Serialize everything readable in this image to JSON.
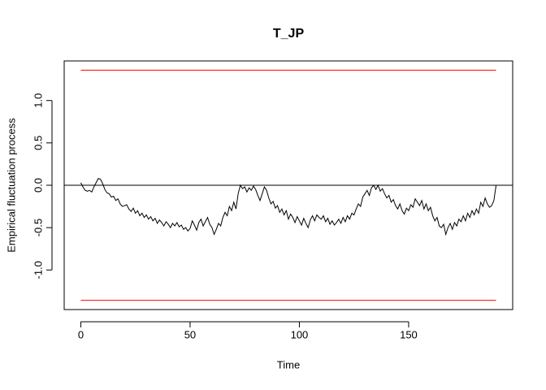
{
  "chart_data": {
    "type": "line",
    "title": "T_JP",
    "x_label": "Time",
    "y_label": "Empirical fluctuation process",
    "x": [
      0,
      1,
      2,
      3,
      4,
      5,
      6,
      7,
      8,
      9,
      10,
      11,
      12,
      13,
      14,
      15,
      16,
      17,
      18,
      19,
      20,
      21,
      22,
      23,
      24,
      25,
      26,
      27,
      28,
      29,
      30,
      31,
      32,
      33,
      34,
      35,
      36,
      37,
      38,
      39,
      40,
      41,
      42,
      43,
      44,
      45,
      46,
      47,
      48,
      49,
      50,
      51,
      52,
      53,
      54,
      55,
      56,
      57,
      58,
      59,
      60,
      61,
      62,
      63,
      64,
      65,
      66,
      67,
      68,
      69,
      70,
      71,
      72,
      73,
      74,
      75,
      76,
      77,
      78,
      79,
      80,
      81,
      82,
      83,
      84,
      85,
      86,
      87,
      88,
      89,
      90,
      91,
      92,
      93,
      94,
      95,
      96,
      97,
      98,
      99,
      100,
      101,
      102,
      103,
      104,
      105,
      106,
      107,
      108,
      109,
      110,
      111,
      112,
      113,
      114,
      115,
      116,
      117,
      118,
      119,
      120,
      121,
      122,
      123,
      124,
      125,
      126,
      127,
      128,
      129,
      130,
      131,
      132,
      133,
      134,
      135,
      136,
      137,
      138,
      139,
      140,
      141,
      142,
      143,
      144,
      145,
      146,
      147,
      148,
      149,
      150,
      151,
      152,
      153,
      154,
      155,
      156,
      157,
      158,
      159,
      160,
      161,
      162,
      163,
      164,
      165,
      166,
      167,
      168,
      169,
      170,
      171,
      172,
      173,
      174,
      175,
      176,
      177,
      178,
      179,
      180,
      181,
      182,
      183,
      184,
      185,
      186,
      187,
      188,
      189,
      190
    ],
    "values": [
      0.03,
      -0.02,
      -0.06,
      -0.07,
      -0.06,
      -0.08,
      -0.02,
      0.03,
      0.08,
      0.07,
      0.02,
      -0.05,
      -0.09,
      -0.1,
      -0.14,
      -0.13,
      -0.18,
      -0.16,
      -0.22,
      -0.25,
      -0.24,
      -0.23,
      -0.28,
      -0.31,
      -0.27,
      -0.33,
      -0.3,
      -0.36,
      -0.33,
      -0.38,
      -0.35,
      -0.4,
      -0.37,
      -0.42,
      -0.39,
      -0.45,
      -0.41,
      -0.44,
      -0.48,
      -0.43,
      -0.46,
      -0.5,
      -0.45,
      -0.48,
      -0.44,
      -0.49,
      -0.47,
      -0.52,
      -0.5,
      -0.54,
      -0.51,
      -0.42,
      -0.47,
      -0.53,
      -0.44,
      -0.4,
      -0.48,
      -0.43,
      -0.38,
      -0.46,
      -0.5,
      -0.58,
      -0.52,
      -0.45,
      -0.48,
      -0.38,
      -0.32,
      -0.36,
      -0.25,
      -0.3,
      -0.2,
      -0.28,
      -0.1,
      0.0,
      -0.04,
      -0.02,
      -0.08,
      -0.03,
      -0.06,
      -0.01,
      -0.05,
      -0.12,
      -0.18,
      -0.1,
      -0.02,
      -0.06,
      -0.15,
      -0.22,
      -0.19,
      -0.27,
      -0.24,
      -0.32,
      -0.28,
      -0.35,
      -0.3,
      -0.4,
      -0.34,
      -0.38,
      -0.44,
      -0.37,
      -0.42,
      -0.47,
      -0.39,
      -0.45,
      -0.5,
      -0.41,
      -0.36,
      -0.42,
      -0.35,
      -0.38,
      -0.4,
      -0.36,
      -0.43,
      -0.39,
      -0.46,
      -0.42,
      -0.47,
      -0.44,
      -0.4,
      -0.45,
      -0.38,
      -0.43,
      -0.36,
      -0.4,
      -0.33,
      -0.35,
      -0.28,
      -0.22,
      -0.25,
      -0.14,
      -0.1,
      -0.06,
      -0.12,
      -0.03,
      0.0,
      -0.05,
      0.0,
      -0.07,
      -0.04,
      -0.1,
      -0.15,
      -0.12,
      -0.2,
      -0.17,
      -0.24,
      -0.28,
      -0.22,
      -0.3,
      -0.34,
      -0.27,
      -0.3,
      -0.23,
      -0.26,
      -0.16,
      -0.2,
      -0.24,
      -0.18,
      -0.28,
      -0.22,
      -0.3,
      -0.26,
      -0.36,
      -0.42,
      -0.38,
      -0.48,
      -0.5,
      -0.46,
      -0.58,
      -0.5,
      -0.45,
      -0.52,
      -0.44,
      -0.48,
      -0.4,
      -0.43,
      -0.36,
      -0.42,
      -0.33,
      -0.38,
      -0.3,
      -0.35,
      -0.28,
      -0.33,
      -0.2,
      -0.25,
      -0.15,
      -0.22,
      -0.26,
      -0.24,
      -0.18,
      0.0
    ],
    "color": "#000000",
    "boundaries": {
      "values": [
        1.358,
        -1.358
      ],
      "color": "#ff0000"
    },
    "reference_line": 0,
    "xlim": [
      -7.6,
      197.6
    ],
    "ylim": [
      -1.467,
      1.467
    ],
    "xticks": [
      0,
      50,
      100,
      150
    ],
    "yticks": [
      {
        "value": -1.0,
        "label": "-1.0"
      },
      -0.5,
      {
        "value": 0.0,
        "label": "0.0"
      },
      0.5,
      {
        "value": 1.0,
        "label": "1.0"
      }
    ]
  }
}
